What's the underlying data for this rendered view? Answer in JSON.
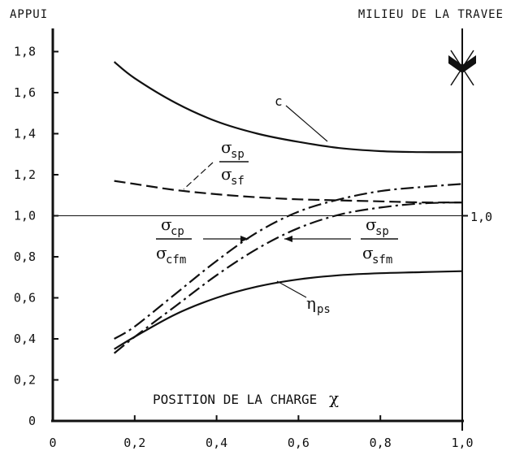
{
  "header": {
    "left": "APPUI",
    "right": "MILIEU DE LA TRAVEE"
  },
  "annotation": {
    "x_axis_title": "POSITION DE LA CHARGE",
    "x_symbol": "χ"
  },
  "chart_data": {
    "type": "line",
    "xlabel": "POSITION DE LA CHARGE χ",
    "ylabel": "",
    "xlim": [
      0,
      1.0
    ],
    "ylim": [
      0,
      1.9
    ],
    "x_ticks": [
      "0",
      "0,2",
      "0,4",
      "0,6",
      "0,8",
      "1,0"
    ],
    "y_ticks": [
      "0",
      "0,2",
      "0,4",
      "0,6",
      "0,8",
      "1,0",
      "1,2",
      "1,4",
      "1,6",
      "1,8"
    ],
    "right_tick": "1,0",
    "reference_line": 1.0,
    "series": [
      {
        "name": "c",
        "style": "solid",
        "x": [
          0.15,
          0.2,
          0.3,
          0.4,
          0.5,
          0.6,
          0.7,
          0.8,
          0.9,
          1.0
        ],
        "y": [
          1.75,
          1.67,
          1.55,
          1.46,
          1.4,
          1.36,
          1.33,
          1.315,
          1.31,
          1.31
        ]
      },
      {
        "name": "σsp/σsf",
        "style": "dashed",
        "x": [
          0.15,
          0.2,
          0.3,
          0.4,
          0.5,
          0.6,
          0.7,
          0.8,
          0.9,
          1.0
        ],
        "y": [
          1.17,
          1.155,
          1.125,
          1.105,
          1.09,
          1.08,
          1.075,
          1.07,
          1.065,
          1.065
        ]
      },
      {
        "name": "σcp/σcfm",
        "style": "dash-dot",
        "x": [
          0.15,
          0.2,
          0.3,
          0.4,
          0.5,
          0.6,
          0.7,
          0.8,
          0.9,
          1.0
        ],
        "y": [
          0.4,
          0.46,
          0.62,
          0.78,
          0.92,
          1.02,
          1.08,
          1.12,
          1.14,
          1.155
        ]
      },
      {
        "name": "σsp/σsfm",
        "style": "dash-dot",
        "x": [
          0.15,
          0.2,
          0.3,
          0.4,
          0.5,
          0.6,
          0.7,
          0.8,
          0.9,
          1.0
        ],
        "y": [
          0.33,
          0.41,
          0.56,
          0.71,
          0.84,
          0.94,
          1.005,
          1.04,
          1.06,
          1.065
        ]
      },
      {
        "name": "ηps",
        "style": "solid",
        "x": [
          0.15,
          0.2,
          0.3,
          0.4,
          0.5,
          0.6,
          0.7,
          0.8,
          0.9,
          1.0
        ],
        "y": [
          0.35,
          0.41,
          0.52,
          0.6,
          0.655,
          0.69,
          0.71,
          0.72,
          0.725,
          0.73
        ]
      }
    ],
    "labels": {
      "c": "c",
      "sigma": "σ",
      "sp": "sp",
      "sf": "sf",
      "cp": "cp",
      "cfm": "cfm",
      "sfm": "sfm",
      "eta": "η",
      "ps": "ps"
    }
  }
}
